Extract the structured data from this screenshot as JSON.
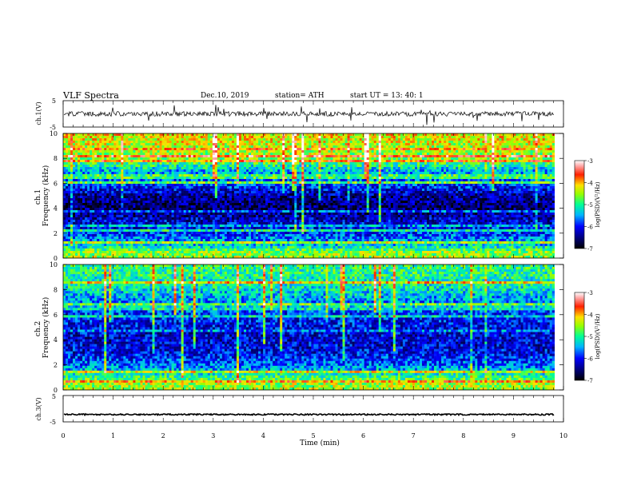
{
  "header": {
    "title": "VLF  Spectra",
    "date": "Dec.10, 2019",
    "station": "station= ATH",
    "start_ut": "start  UT  =    13: 40: 1"
  },
  "chart_data": [
    {
      "type": "line",
      "panel": "ch1-waveform",
      "ylabel": "ch.1(V)",
      "ylim": [
        -5,
        5
      ],
      "yticks": [
        "5",
        "-5"
      ],
      "xlim": [
        0,
        10
      ],
      "data_xmax": 9.82,
      "level": 0,
      "noise_amplitude": 0.9,
      "color": "#000000"
    },
    {
      "type": "heatmap",
      "panel": "ch1-spectrogram",
      "ylabel": "ch.1\nFrequency  (kHz)",
      "ylabel_lines": [
        "ch.1",
        "Frequency  (kHz)"
      ],
      "ylim": [
        0,
        10
      ],
      "yticks": [
        "0",
        "2",
        "4",
        "6",
        "8",
        "10"
      ],
      "xlim": [
        0,
        10
      ],
      "data_xmax": 9.82,
      "colorbar": {
        "label": "log(PSD)(V²/Hz)",
        "range": [
          -7,
          -3
        ],
        "ticks": [
          "-3",
          "-4",
          "-5",
          "-6",
          "-7"
        ]
      },
      "band_levels_kHz_to_logpsd": [
        [
          0.0,
          -4.5
        ],
        [
          0.5,
          -4.6
        ],
        [
          1.0,
          -5.3
        ],
        [
          2.0,
          -5.9
        ],
        [
          3.0,
          -6.2
        ],
        [
          4.0,
          -6.6
        ],
        [
          5.0,
          -6.4
        ],
        [
          6.0,
          -5.8
        ],
        [
          7.0,
          -5.4
        ],
        [
          8.0,
          -4.6
        ],
        [
          10.0,
          -4.2
        ]
      ]
    },
    {
      "type": "heatmap",
      "panel": "ch2-spectrogram",
      "ylabel": "ch.2\nFrequency  (kHz)",
      "ylabel_lines": [
        "ch.2",
        "Frequency  (kHz)"
      ],
      "ylim": [
        0,
        10
      ],
      "yticks": [
        "0",
        "2",
        "4",
        "6",
        "8",
        "10"
      ],
      "xlim": [
        0,
        10
      ],
      "data_xmax": 9.82,
      "colorbar": {
        "label": "log(PSD)(V²/Hz)",
        "range": [
          -7,
          -3
        ],
        "ticks": [
          "-3",
          "-4",
          "-5",
          "-6",
          "-7"
        ]
      },
      "band_levels_kHz_to_logpsd": [
        [
          0.0,
          -4.5
        ],
        [
          0.5,
          -4.5
        ],
        [
          1.0,
          -4.9
        ],
        [
          2.0,
          -5.7
        ],
        [
          3.0,
          -6.1
        ],
        [
          4.0,
          -6.2
        ],
        [
          5.0,
          -6.1
        ],
        [
          6.0,
          -5.9
        ],
        [
          7.0,
          -5.6
        ],
        [
          8.0,
          -5.2
        ],
        [
          10.0,
          -4.9
        ]
      ]
    },
    {
      "type": "line",
      "panel": "ch3-waveform",
      "ylabel": "ch.3(V)",
      "ylim": [
        -5,
        5
      ],
      "yticks": [
        "5",
        "0",
        "-5"
      ],
      "xlim": [
        0,
        10
      ],
      "data_xmax": 9.82,
      "level": -2.2,
      "noise_amplitude": 0.25,
      "color": "#000000"
    }
  ],
  "xaxis": {
    "label": "Time  (min)",
    "ticks": [
      "0",
      "1",
      "2",
      "3",
      "4",
      "5",
      "6",
      "7",
      "8",
      "9",
      "10"
    ]
  }
}
